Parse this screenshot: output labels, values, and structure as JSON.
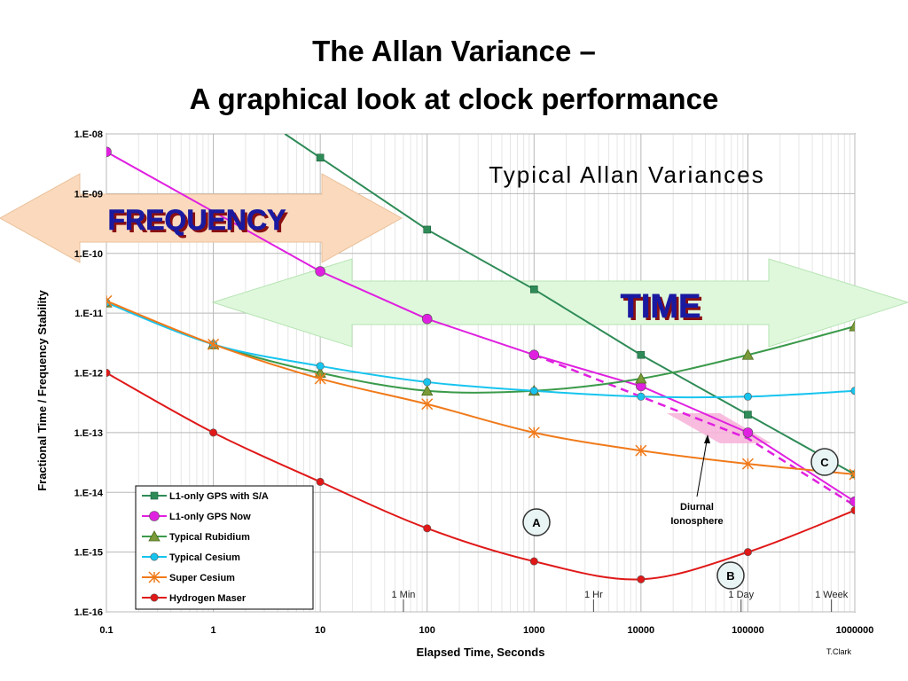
{
  "title": {
    "line1": "The Allan Variance –",
    "line2": "A graphical look at clock performance"
  },
  "colors": {
    "gps_sa": "#2e8b57",
    "gps_now": "#e020e0",
    "rubidium": "#3a9a4a",
    "cesium": "#17c4ee",
    "super_cesium": "#f07a1a",
    "maser": "#e01818",
    "freq_arrow": "#fbd9bd",
    "time_arrow": "#dff8dc",
    "diurnal": "#f7b0d8"
  },
  "chart_data": {
    "type": "line",
    "title": "Typical Allan Variances",
    "xlabel": "Elapsed Time, Seconds",
    "ylabel": "Fractional Time / Frequency Stability",
    "x_scale": "log",
    "y_scale": "log",
    "xlim": [
      0.1,
      1000000
    ],
    "ylim": [
      1e-16,
      1e-08
    ],
    "grid": true,
    "legend_position": "bottom-left",
    "x_ticks": [
      "0.1",
      "1",
      "10",
      "100",
      "1000",
      "10000",
      "100000",
      "1000000"
    ],
    "y_ticks": [
      "1.E-08",
      "1.E-09",
      "1.E-10",
      "1.E-11",
      "1.E-12",
      "1.E-13",
      "1.E-14",
      "1.E-15",
      "1.E-16"
    ],
    "series": [
      {
        "name": "L1-only GPS with S/A",
        "color_key": "gps_sa",
        "marker": "square",
        "x": [
          10,
          100,
          1000,
          10000,
          100000,
          1000000
        ],
        "y": [
          4e-09,
          2.5e-10,
          2.5e-11,
          2e-12,
          2e-13,
          2e-14
        ]
      },
      {
        "name": "L1-only GPS Now",
        "color_key": "gps_now",
        "marker": "circle",
        "x": [
          0.1,
          10,
          100,
          1000,
          10000,
          100000,
          1000000
        ],
        "y": [
          5e-09,
          5e-11,
          8e-12,
          2e-12,
          6e-13,
          1e-13,
          7e-15
        ]
      },
      {
        "name": "Typical Rubidium",
        "color_key": "rubidium",
        "marker": "triangle",
        "x": [
          0.1,
          1,
          10,
          100,
          1000,
          10000,
          100000,
          1000000
        ],
        "y": [
          1.5e-11,
          3e-12,
          1e-12,
          5e-13,
          5e-13,
          8e-13,
          2e-12,
          6e-12
        ]
      },
      {
        "name": "Typical Cesium",
        "color_key": "cesium",
        "marker": "circle",
        "x": [
          0.1,
          1,
          10,
          100,
          1000,
          10000,
          100000,
          1000000
        ],
        "y": [
          1.5e-11,
          3e-12,
          1.3e-12,
          7e-13,
          5e-13,
          4e-13,
          4e-13,
          5e-13
        ]
      },
      {
        "name": "Super Cesium",
        "color_key": "super_cesium",
        "marker": "star",
        "x": [
          0.1,
          1,
          10,
          100,
          1000,
          10000,
          100000,
          1000000
        ],
        "y": [
          1.6e-11,
          3e-12,
          8e-13,
          3e-13,
          1e-13,
          5e-14,
          3e-14,
          2e-14
        ]
      },
      {
        "name": "Hydrogen Maser",
        "color_key": "maser",
        "marker": "circle",
        "x": [
          0.1,
          1,
          10,
          100,
          1000,
          10000,
          100000,
          1000000
        ],
        "y": [
          1e-12,
          1e-13,
          1.5e-14,
          2.5e-15,
          7e-16,
          3.5e-16,
          1e-15,
          5e-15
        ]
      }
    ],
    "dashed_line": {
      "x": [
        1000,
        10000,
        100000,
        1000000
      ],
      "y": [
        2e-12,
        4e-13,
        8e-14,
        6e-15
      ]
    },
    "events": [
      {
        "label": "1 Min",
        "x": 60
      },
      {
        "label": "1 Hr",
        "x": 3600
      },
      {
        "label": "1 Day",
        "x": 86400
      },
      {
        "label": "1 Week",
        "x": 604800
      }
    ],
    "annotations": {
      "diurnal": [
        "Diurnal",
        "Ionosphere"
      ],
      "circle_a": "A",
      "circle_b": "B",
      "circle_c": "C",
      "frequency_arrow_label": "FREQUENCY",
      "time_arrow_label": "TIME",
      "credit": "T.Clark"
    }
  }
}
